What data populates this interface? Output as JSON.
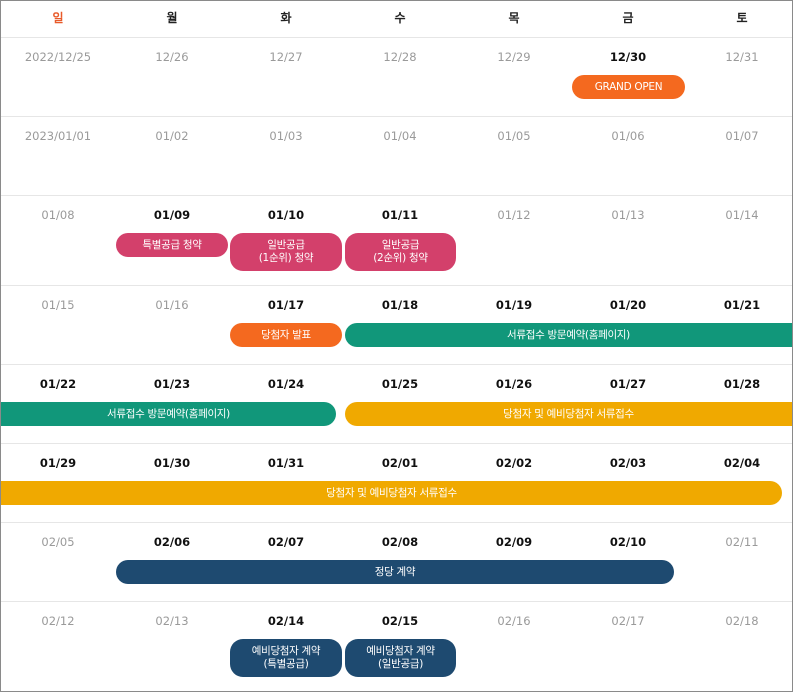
{
  "weekdays": [
    "일",
    "월",
    "화",
    "수",
    "목",
    "금",
    "토"
  ],
  "weeks": [
    {
      "dates": [
        "2022/12/25",
        "12/26",
        "12/27",
        "12/28",
        "12/29",
        "12/30",
        "12/31"
      ]
    },
    {
      "dates": [
        "2023/01/01",
        "01/02",
        "01/03",
        "01/04",
        "01/05",
        "01/06",
        "01/07"
      ]
    },
    {
      "dates": [
        "01/08",
        "01/09",
        "01/10",
        "01/11",
        "01/12",
        "01/13",
        "01/14"
      ]
    },
    {
      "dates": [
        "01/15",
        "01/16",
        "01/17",
        "01/18",
        "01/19",
        "01/20",
        "01/21"
      ]
    },
    {
      "dates": [
        "01/22",
        "01/23",
        "01/24",
        "01/25",
        "01/26",
        "01/27",
        "01/28"
      ]
    },
    {
      "dates": [
        "01/29",
        "01/30",
        "01/31",
        "02/01",
        "02/02",
        "02/03",
        "02/04"
      ]
    },
    {
      "dates": [
        "02/05",
        "02/06",
        "02/07",
        "02/08",
        "02/09",
        "02/10",
        "02/11"
      ]
    },
    {
      "dates": [
        "02/12",
        "02/13",
        "02/14",
        "02/15",
        "02/16",
        "02/17",
        "02/18"
      ]
    }
  ],
  "events": {
    "grand_open": "GRAND OPEN",
    "special_supply": "특별공급 청약",
    "general_1_line1": "일반공급",
    "general_1_line2": "(1순위) 청약",
    "general_2_line1": "일반공급",
    "general_2_line2": "(2순위) 청약",
    "winner_announce": "당첨자 발표",
    "doc_visit_a": "서류접수 방문예약(홈페이지)",
    "doc_visit_b": "서류접수 방문예약(홈페이지)",
    "doc_submit_a": "당첨자 및 예비당첨자 서류접수",
    "doc_submit_b": "당첨자 및 예비당첨자 서류접수",
    "contract": "정당 계약",
    "reserve_special_line1": "예비당첨자 계약",
    "reserve_special_line2": "(특별공급)",
    "reserve_general_line1": "예비당첨자 계약",
    "reserve_general_line2": "(일반공급)"
  },
  "colors": {
    "orange": "#f4691f",
    "pink": "#d3406b",
    "green": "#11977a",
    "yellow": "#f0a900",
    "navy": "#1e4a70",
    "sunday": "#e85a2a"
  }
}
